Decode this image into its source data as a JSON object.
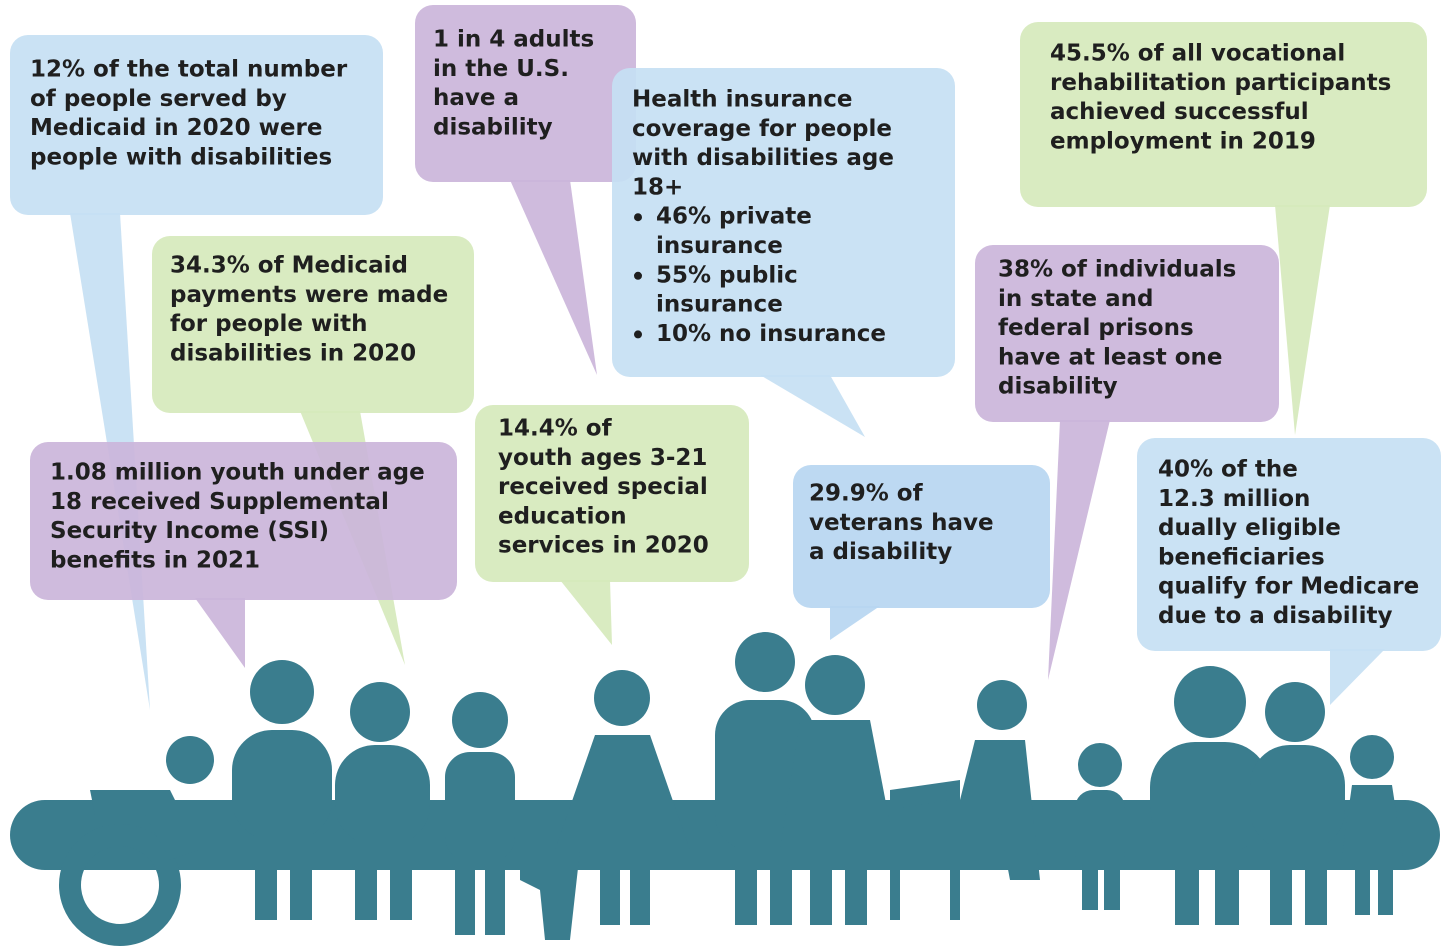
{
  "bubbles": [
    {
      "lines": [
        "12% of the total number",
        "of people served by",
        "Medicaid in 2020 were",
        "people with disabilities"
      ]
    },
    {
      "lines": [
        "1 in 4 adults",
        "in the U.S.",
        "have a",
        "disability"
      ]
    },
    {
      "lines": [
        "Health insurance",
        "coverage for people",
        "with disabilities age",
        "18+"
      ],
      "bullets": [
        [
          "46% private",
          "insurance"
        ],
        [
          "55% public",
          "insurance"
        ],
        [
          "10% no insurance"
        ]
      ]
    },
    {
      "lines": [
        "45.5% of all vocational",
        "rehabilitation participants",
        "achieved successful",
        "employment in 2019"
      ]
    },
    {
      "lines": [
        "34.3% of Medicaid",
        "payments were made",
        "for people with",
        "disabilities in 2020"
      ]
    },
    {
      "lines": [
        "1.08 million youth under age",
        "18 received Supplemental",
        "Security Income (SSI)",
        "benefits in 2021"
      ]
    },
    {
      "lines": [
        "14.4% of",
        "youth ages 3-21",
        "received special",
        "education",
        "services in 2020"
      ]
    },
    {
      "lines": [
        "29.9% of",
        "veterans have",
        "a disability"
      ]
    },
    {
      "lines": [
        "38% of individuals",
        "in state and",
        "federal prisons",
        "have at least one",
        "disability"
      ]
    },
    {
      "lines": [
        "40% of the",
        "12.3 million",
        "dually eligible",
        "beneficiaries",
        "qualify for Medicare",
        "due to a disability"
      ]
    }
  ]
}
